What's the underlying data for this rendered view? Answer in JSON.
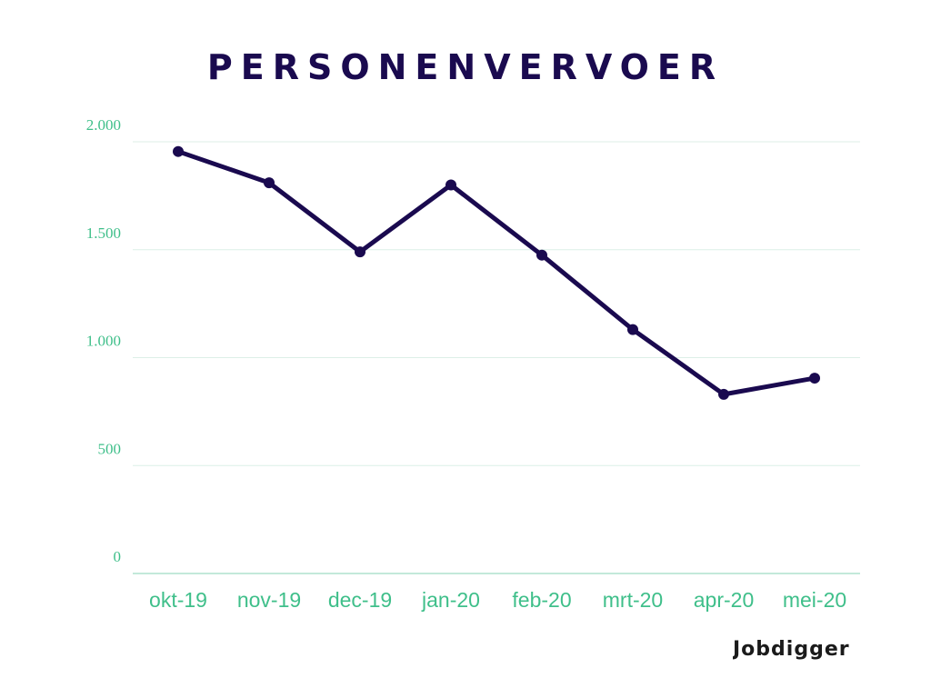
{
  "chart_data": {
    "type": "line",
    "title": "PERSONENVERVOER",
    "categories": [
      "okt-19",
      "nov-19",
      "dec-19",
      "jan-20",
      "feb-20",
      "mrt-20",
      "apr-20",
      "mei-20"
    ],
    "series": [
      {
        "values": [
          1955,
          1810,
          1490,
          1800,
          1475,
          1130,
          830,
          905
        ]
      }
    ],
    "ylim": [
      0,
      2000
    ],
    "yticks": [
      0,
      500,
      1000,
      1500,
      2000
    ],
    "ytick_labels": [
      "0",
      "500",
      "1.000",
      "1.500",
      "2.000"
    ],
    "xlabel": "",
    "ylabel": "",
    "grid": true,
    "legend": "none",
    "colors": {
      "line": "#1a0a4f",
      "axis_text": "#3fbf8a",
      "grid": "#dcefe7",
      "title": "#1a0a4f"
    }
  },
  "logo": {
    "text": "Jobdigger"
  }
}
